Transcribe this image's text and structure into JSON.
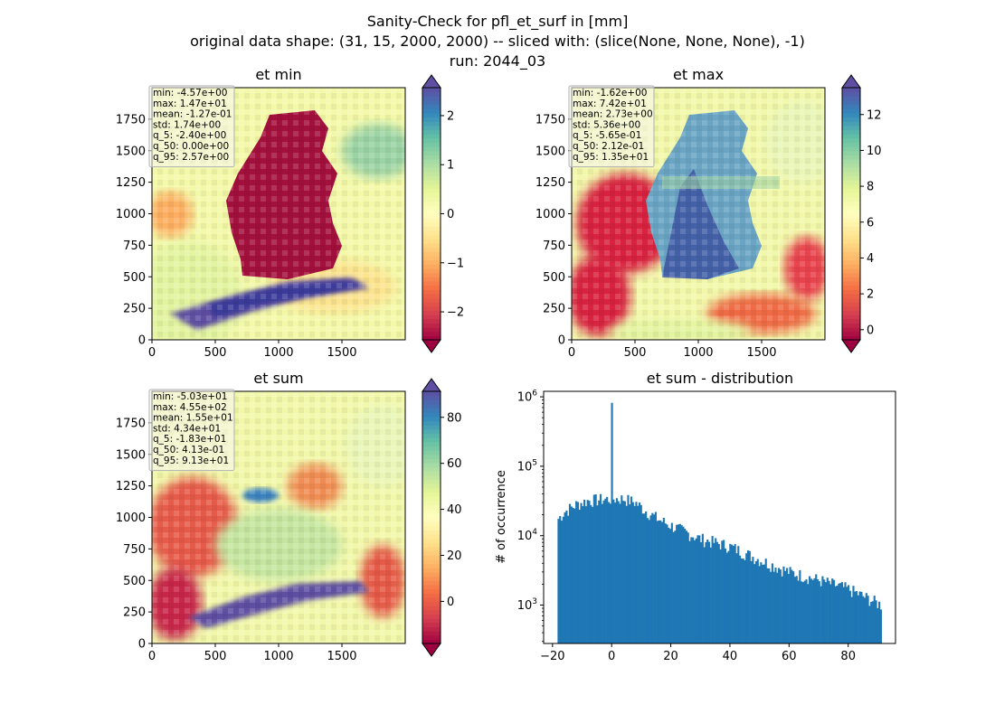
{
  "figure": {
    "title_lines": [
      "Sanity-Check for pfl_et_surf in [mm]",
      "original data shape: (31, 15, 2000, 2000) -- sliced with: (slice(None, None, None), -1)",
      "run: 2044_03"
    ],
    "colormap": [
      "#9e0142",
      "#d53e4f",
      "#f46d43",
      "#fdae61",
      "#fee08b",
      "#ffffbf",
      "#e6f598",
      "#abdda4",
      "#66c2a5",
      "#3288bd",
      "#5e4fa2"
    ]
  },
  "chart_data": [
    {
      "type": "heatmap",
      "id": "et_min",
      "title": "et min",
      "xticks": [
        0,
        500,
        1000,
        1500
      ],
      "yticks": [
        0,
        250,
        500,
        750,
        1000,
        1250,
        1500,
        1750
      ],
      "xlim": [
        0,
        2000
      ],
      "ylim": [
        0,
        2000
      ],
      "colorbar": {
        "vmin": -2.57,
        "vmax": 2.57,
        "ticks": [
          -2,
          -1,
          0,
          1,
          2
        ],
        "tick_labels": [
          "−2",
          "−1",
          "0",
          "1",
          "2"
        ],
        "extend": "both"
      },
      "stats": [
        "min: -4.57e+00",
        "max: 1.47e+01",
        "mean: -1.27e-01",
        "std: 1.74e+00",
        "q_5: -2.40e+00",
        "q_50: 0.00e+00",
        "q_95: 2.57e+00"
      ]
    },
    {
      "type": "heatmap",
      "id": "et_max",
      "title": "et max",
      "xticks": [
        0,
        500,
        1000,
        1500
      ],
      "yticks": [
        0,
        250,
        500,
        750,
        1000,
        1250,
        1500,
        1750
      ],
      "xlim": [
        0,
        2000
      ],
      "ylim": [
        0,
        2000
      ],
      "colorbar": {
        "vmin": -0.565,
        "vmax": 13.5,
        "ticks": [
          0,
          2,
          4,
          6,
          8,
          10,
          12
        ],
        "tick_labels": [
          "0",
          "2",
          "4",
          "6",
          "8",
          "10",
          "12"
        ],
        "extend": "both"
      },
      "stats": [
        "min: -1.62e+00",
        "max: 7.42e+01",
        "mean: 2.73e+00",
        "std: 5.36e+00",
        "q_5: -5.65e-01",
        "q_50: 2.12e-01",
        "q_95: 1.35e+01"
      ]
    },
    {
      "type": "heatmap",
      "id": "et_sum",
      "title": "et sum",
      "xticks": [
        0,
        500,
        1000,
        1500
      ],
      "yticks": [
        0,
        250,
        500,
        750,
        1000,
        1250,
        1500,
        1750
      ],
      "xlim": [
        0,
        2000
      ],
      "ylim": [
        0,
        2000
      ],
      "colorbar": {
        "vmin": -18.3,
        "vmax": 91.3,
        "ticks": [
          0,
          20,
          40,
          60,
          80
        ],
        "tick_labels": [
          "0",
          "20",
          "40",
          "60",
          "80"
        ],
        "extend": "both"
      },
      "stats": [
        "min: -5.03e+01",
        "max: 4.55e+02",
        "mean: 1.55e+01",
        "std: 4.34e+01",
        "q_5: -1.83e+01",
        "q_50: 4.13e-01",
        "q_95: 9.13e+01"
      ]
    },
    {
      "type": "bar",
      "id": "et_sum_distribution",
      "title": "et sum - distribution",
      "ylabel": "# of occurrence",
      "xlabel": "",
      "yscale": "log",
      "color": "#1f77b4",
      "xlim": [
        -23,
        96
      ],
      "ylim": [
        280,
        1200000
      ],
      "xticks": [
        -20,
        0,
        20,
        40,
        60,
        80
      ],
      "xtick_labels": [
        "−20",
        "0",
        "20",
        "40",
        "60",
        "80"
      ],
      "yticks": [
        1000,
        10000,
        100000,
        1000000
      ],
      "ytick_labels": [
        "10^3",
        "10^4",
        "10^5",
        "10^6"
      ],
      "bin_range": [
        -18.3,
        91.3
      ],
      "peak": {
        "x": 0,
        "count": 820000
      },
      "profile": [
        {
          "x": -18.3,
          "count": 17000
        },
        {
          "x": -16,
          "count": 22000
        },
        {
          "x": -12,
          "count": 28000
        },
        {
          "x": -8,
          "count": 32000
        },
        {
          "x": -4,
          "count": 33000
        },
        {
          "x": 0,
          "count": 34000
        },
        {
          "x": 4,
          "count": 34000
        },
        {
          "x": 8,
          "count": 30000
        },
        {
          "x": 12,
          "count": 22000
        },
        {
          "x": 16,
          "count": 17000
        },
        {
          "x": 20,
          "count": 14000
        },
        {
          "x": 30,
          "count": 9000
        },
        {
          "x": 40,
          "count": 7000
        },
        {
          "x": 50,
          "count": 4500
        },
        {
          "x": 60,
          "count": 3000
        },
        {
          "x": 70,
          "count": 2300
        },
        {
          "x": 80,
          "count": 1700
        },
        {
          "x": 91.3,
          "count": 1000
        }
      ]
    }
  ]
}
